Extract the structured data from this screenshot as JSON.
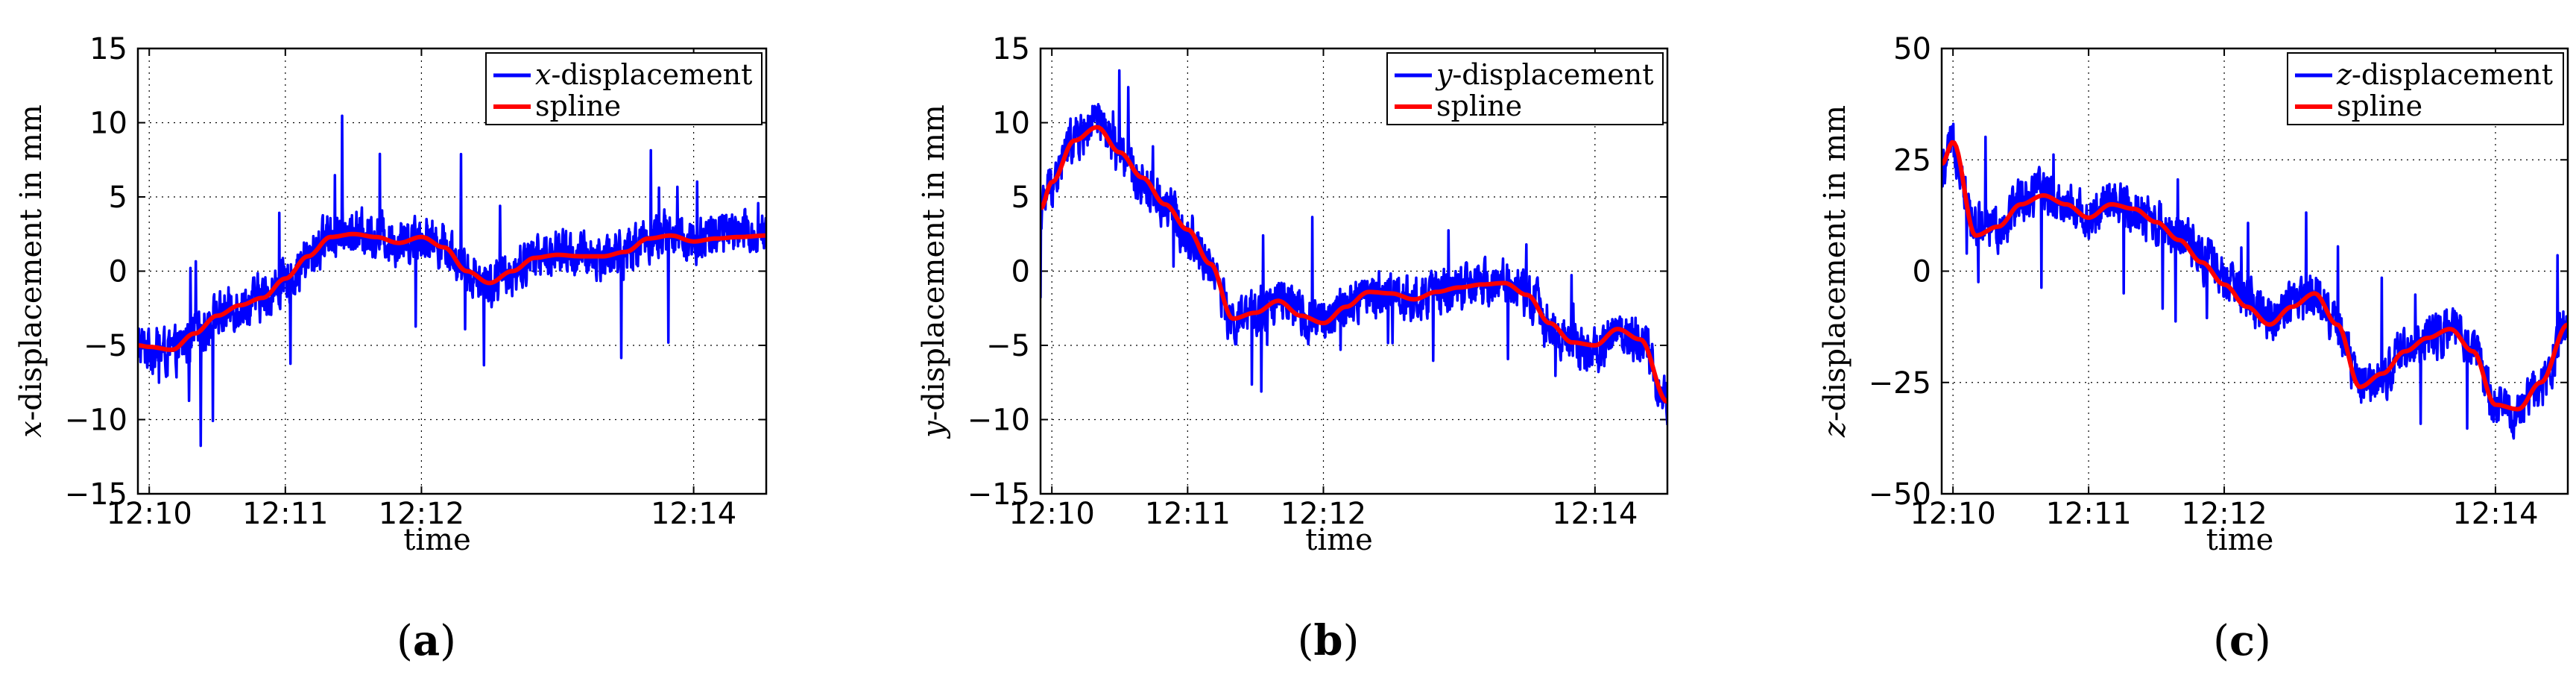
{
  "chart_data": [
    {
      "type": "line",
      "panel_label": "(a)",
      "panel_letter": "a",
      "xlabel": "time",
      "ylabel": "x-displacement in mm",
      "ylabel_var": "x",
      "ylabel_rest": "-displacement in mm",
      "ylim": [
        -15,
        15
      ],
      "yticks": [
        -15,
        -10,
        -5,
        0,
        5,
        10,
        15
      ],
      "ytick_labels": [
        "−15",
        "−10",
        "−5",
        "0",
        "5",
        "10",
        "15"
      ],
      "xlim": [
        "12:09:55",
        "12:14:32"
      ],
      "xticks": [
        "12:10",
        "12:11",
        "12:12",
        "12:14"
      ],
      "grid": true,
      "legend_position": "top-right",
      "series": [
        {
          "name": "x-displacement",
          "name_var": "x",
          "name_rest": "-displacement",
          "color": "#0000ff",
          "style": "noisy",
          "x": [
            "12:09:55",
            "12:10:00",
            "12:10:10",
            "12:10:20",
            "12:10:30",
            "12:10:40",
            "12:10:50",
            "12:11:00",
            "12:11:10",
            "12:11:20",
            "12:11:30",
            "12:11:40",
            "12:11:50",
            "12:12:00",
            "12:12:10",
            "12:12:20",
            "12:12:30",
            "12:12:40",
            "12:12:50",
            "12:13:00",
            "12:13:10",
            "12:13:20",
            "12:13:30",
            "12:13:40",
            "12:13:50",
            "12:14:00",
            "12:14:10",
            "12:14:20",
            "12:14:32"
          ],
          "values": [
            -5.0,
            -5.2,
            -5.5,
            -4.5,
            -3.0,
            -2.3,
            -1.8,
            -0.8,
            0.8,
            2.5,
            2.6,
            2.4,
            2.0,
            2.3,
            1.8,
            0.0,
            -0.8,
            0.0,
            1.0,
            1.2,
            1.0,
            1.0,
            1.3,
            2.3,
            2.5,
            2.0,
            2.5,
            2.5,
            2.5
          ]
        },
        {
          "name": "spline",
          "color": "#ff0000",
          "style": "smooth",
          "x": [
            "12:09:55",
            "12:10:00",
            "12:10:10",
            "12:10:20",
            "12:10:30",
            "12:10:40",
            "12:10:50",
            "12:11:00",
            "12:11:10",
            "12:11:20",
            "12:11:30",
            "12:11:40",
            "12:11:50",
            "12:12:00",
            "12:12:10",
            "12:12:20",
            "12:12:30",
            "12:12:40",
            "12:12:50",
            "12:13:00",
            "12:13:10",
            "12:13:20",
            "12:13:30",
            "12:13:40",
            "12:13:50",
            "12:14:00",
            "12:14:10",
            "12:14:20",
            "12:14:32"
          ],
          "values": [
            -5.0,
            -5.1,
            -5.3,
            -4.2,
            -3.0,
            -2.3,
            -1.8,
            -0.5,
            1.0,
            2.3,
            2.5,
            2.3,
            1.9,
            2.3,
            1.6,
            0.0,
            -0.8,
            0.0,
            0.9,
            1.1,
            1.0,
            1.0,
            1.3,
            2.2,
            2.4,
            2.0,
            2.2,
            2.3,
            2.4
          ]
        }
      ]
    },
    {
      "type": "line",
      "panel_label": "(b)",
      "panel_letter": "b",
      "xlabel": "time",
      "ylabel": "y-displacement in mm",
      "ylabel_var": "y",
      "ylabel_rest": "-displacement in mm",
      "ylim": [
        -15,
        15
      ],
      "yticks": [
        -15,
        -10,
        -5,
        0,
        5,
        10,
        15
      ],
      "ytick_labels": [
        "−15",
        "−10",
        "−5",
        "0",
        "5",
        "10",
        "15"
      ],
      "xlim": [
        "12:09:55",
        "12:14:32"
      ],
      "xticks": [
        "12:10",
        "12:11",
        "12:12",
        "12:14"
      ],
      "grid": true,
      "legend_position": "top-right",
      "series": [
        {
          "name": "y-displacement",
          "name_var": "y",
          "name_rest": "-displacement",
          "color": "#0000ff",
          "style": "noisy",
          "x": [
            "12:09:55",
            "12:10:00",
            "12:10:10",
            "12:10:20",
            "12:10:30",
            "12:10:40",
            "12:10:50",
            "12:11:00",
            "12:11:10",
            "12:11:20",
            "12:11:30",
            "12:11:40",
            "12:11:50",
            "12:12:00",
            "12:12:10",
            "12:12:20",
            "12:12:30",
            "12:12:40",
            "12:12:50",
            "12:13:00",
            "12:13:10",
            "12:13:20",
            "12:13:30",
            "12:13:40",
            "12:13:50",
            "12:14:00",
            "12:14:10",
            "12:14:20",
            "12:14:32"
          ],
          "values": [
            4.0,
            6.0,
            9.0,
            10.0,
            8.0,
            6.0,
            4.5,
            2.5,
            0.5,
            -3.5,
            -3.0,
            -2.0,
            -3.0,
            -3.5,
            -2.5,
            -1.5,
            -1.5,
            -2.0,
            -1.5,
            -1.2,
            -1.0,
            -0.8,
            -1.5,
            -3.5,
            -5.0,
            -5.5,
            -4.0,
            -4.5,
            -9.0
          ]
        },
        {
          "name": "spline",
          "color": "#ff0000",
          "style": "smooth",
          "x": [
            "12:09:55",
            "12:10:00",
            "12:10:10",
            "12:10:20",
            "12:10:30",
            "12:10:40",
            "12:10:50",
            "12:11:00",
            "12:11:10",
            "12:11:20",
            "12:11:30",
            "12:11:40",
            "12:11:50",
            "12:12:00",
            "12:12:10",
            "12:12:20",
            "12:12:30",
            "12:12:40",
            "12:12:50",
            "12:13:00",
            "12:13:10",
            "12:13:20",
            "12:13:30",
            "12:13:40",
            "12:13:50",
            "12:14:00",
            "12:14:10",
            "12:14:20",
            "12:14:32"
          ],
          "values": [
            4.2,
            6.0,
            8.8,
            9.7,
            8.0,
            6.3,
            4.5,
            2.8,
            0.5,
            -3.2,
            -2.8,
            -2.0,
            -3.0,
            -3.5,
            -2.4,
            -1.4,
            -1.5,
            -1.9,
            -1.4,
            -1.1,
            -0.9,
            -0.8,
            -1.6,
            -3.5,
            -4.8,
            -5.0,
            -3.9,
            -4.6,
            -8.8
          ]
        }
      ]
    },
    {
      "type": "line",
      "panel_label": "(c)",
      "panel_letter": "c",
      "xlabel": "time",
      "ylabel": "z-displacement in mm",
      "ylabel_var": "z",
      "ylabel_rest": "-displacement in mm",
      "ylim": [
        -50,
        50
      ],
      "yticks": [
        -50,
        -25,
        0,
        25,
        50
      ],
      "ytick_labels": [
        "−50",
        "−25",
        "0",
        "25",
        "50"
      ],
      "xlim": [
        "12:09:55",
        "12:14:32"
      ],
      "xticks": [
        "12:10",
        "12:11",
        "12:12",
        "12:14"
      ],
      "grid": true,
      "legend_position": "top-right",
      "series": [
        {
          "name": "z-displacement",
          "name_var": "z",
          "name_rest": "-displacement",
          "color": "#0000ff",
          "style": "noisy",
          "x": [
            "12:09:55",
            "12:10:00",
            "12:10:10",
            "12:10:20",
            "12:10:30",
            "12:10:40",
            "12:10:50",
            "12:11:00",
            "12:11:10",
            "12:11:20",
            "12:11:30",
            "12:11:40",
            "12:11:50",
            "12:12:00",
            "12:12:10",
            "12:12:20",
            "12:12:30",
            "12:12:40",
            "12:12:50",
            "12:13:00",
            "12:13:10",
            "12:13:20",
            "12:13:30",
            "12:13:40",
            "12:13:50",
            "12:14:00",
            "12:14:10",
            "12:14:20",
            "12:14:32"
          ],
          "values": [
            22,
            28,
            10,
            10,
            16,
            18,
            15,
            12,
            15,
            14,
            11,
            8,
            3,
            -2,
            -6,
            -10,
            -8,
            -5,
            -12,
            -25,
            -23,
            -18,
            -15,
            -13,
            -17,
            -30,
            -32,
            -25,
            -12
          ]
        },
        {
          "name": "spline",
          "color": "#ff0000",
          "style": "smooth",
          "x": [
            "12:09:55",
            "12:10:00",
            "12:10:10",
            "12:10:20",
            "12:10:30",
            "12:10:40",
            "12:10:50",
            "12:11:00",
            "12:11:10",
            "12:11:20",
            "12:11:30",
            "12:11:40",
            "12:11:50",
            "12:12:00",
            "12:12:10",
            "12:12:20",
            "12:12:30",
            "12:12:40",
            "12:12:50",
            "12:13:00",
            "12:13:10",
            "12:13:20",
            "12:13:30",
            "12:13:40",
            "12:13:50",
            "12:14:00",
            "12:14:10",
            "12:14:20",
            "12:14:32"
          ],
          "values": [
            24,
            29,
            8,
            10,
            15,
            17,
            15,
            12,
            15,
            14,
            11,
            7,
            2,
            -3,
            -8,
            -12,
            -8,
            -5,
            -12,
            -26,
            -23,
            -18,
            -15,
            -13,
            -18,
            -30,
            -31,
            -25,
            -12
          ]
        }
      ]
    }
  ]
}
